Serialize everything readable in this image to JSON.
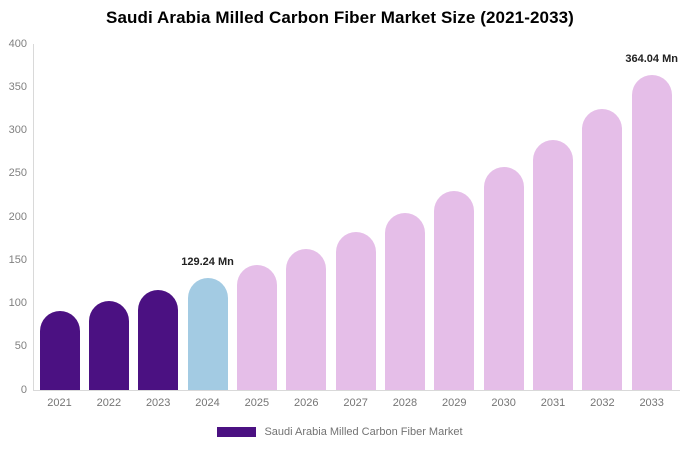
{
  "chart_data": {
    "type": "bar",
    "title": "Saudi Arabia Milled Carbon Fiber Market Size (2021-2033)",
    "unit": "Mn",
    "categories": [
      "2021",
      "2022",
      "2023",
      "2024",
      "2025",
      "2026",
      "2027",
      "2028",
      "2029",
      "2030",
      "2031",
      "2032",
      "2033"
    ],
    "values": [
      91.5,
      102.7,
      115.2,
      129.24,
      145.0,
      162.7,
      182.5,
      204.8,
      229.8,
      257.8,
      289.2,
      324.5,
      364.04
    ],
    "colors": [
      "#4b1182",
      "#4b1182",
      "#4b1182",
      "#a3cbe3",
      "#e5bee8",
      "#e5bee8",
      "#e5bee8",
      "#e5bee8",
      "#e5bee8",
      "#e5bee8",
      "#e5bee8",
      "#e5bee8",
      "#e5bee8"
    ],
    "ylim": [
      0,
      400
    ],
    "y_ticks": [
      0,
      50,
      100,
      150,
      200,
      250,
      300,
      350,
      400
    ],
    "grid": false,
    "data_labels": [
      {
        "index": 3,
        "text": "129.24 Mn"
      },
      {
        "index": 12,
        "text": "364.04 Mn"
      }
    ],
    "legend": {
      "label": "Saudi Arabia Milled Carbon Fiber Market",
      "swatch_color": "#4b1182",
      "position": "bottom-center"
    },
    "palette": {
      "historical_bar": "#4b1182",
      "base_year_bar": "#a3cbe3",
      "forecast_bar": "#e5bee8",
      "axis_line": "#d9d9d9",
      "tick_text": "#808080",
      "title_text": "#000000"
    }
  }
}
